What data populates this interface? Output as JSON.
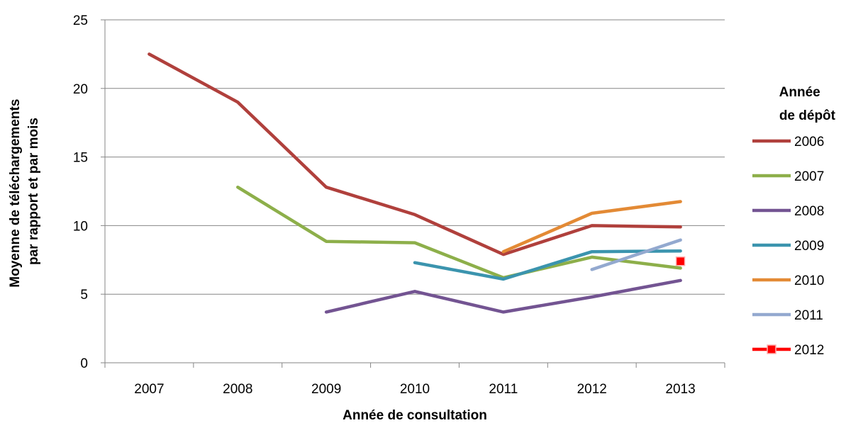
{
  "chart_data": {
    "type": "line",
    "xlabel": "Année de consultation",
    "ylabel": "Moyenne de téléchargements par rapport et par mois",
    "ylabel_lines": [
      "Moyenne de téléchargements",
      "par rapport et par mois"
    ],
    "ylim": [
      0,
      25
    ],
    "yticks": [
      "0",
      "5",
      "10",
      "15",
      "20",
      "25"
    ],
    "categories": [
      "2007",
      "2008",
      "2009",
      "2010",
      "2011",
      "2012",
      "2013"
    ],
    "grid": true,
    "legend_position": "right",
    "legend_title": "Année de dépôt",
    "legend_title_lines": [
      "Année",
      "de dépôt"
    ],
    "series": [
      {
        "name": "2006",
        "color": "#B0403C",
        "values": [
          22.5,
          19.0,
          12.8,
          10.8,
          7.9,
          10.0,
          9.9
        ]
      },
      {
        "name": "2007",
        "color": "#8DAF4A",
        "values": [
          null,
          12.8,
          8.85,
          8.75,
          6.2,
          7.7,
          6.9
        ]
      },
      {
        "name": "2008",
        "color": "#735492",
        "values": [
          null,
          null,
          3.7,
          5.2,
          3.7,
          4.8,
          6.0
        ]
      },
      {
        "name": "2009",
        "color": "#3B94AE",
        "values": [
          null,
          null,
          null,
          7.3,
          6.1,
          8.1,
          8.15
        ]
      },
      {
        "name": "2010",
        "color": "#E38A35",
        "values": [
          null,
          null,
          null,
          null,
          8.1,
          10.9,
          11.75
        ]
      },
      {
        "name": "2011",
        "color": "#93A9CF",
        "values": [
          null,
          null,
          null,
          null,
          null,
          6.8,
          8.95
        ]
      },
      {
        "name": "2012",
        "color": "#FF0000",
        "marker": "square",
        "values": [
          null,
          null,
          null,
          null,
          null,
          null,
          7.4
        ]
      }
    ]
  }
}
